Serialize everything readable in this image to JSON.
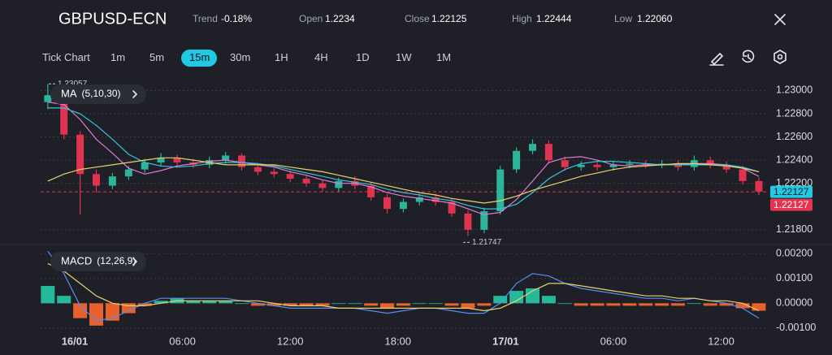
{
  "header": {
    "symbol": "GBPUSD-ECN",
    "stats": [
      {
        "label": "Trend",
        "value": "-0.18%"
      },
      {
        "label": "Open",
        "value": "1.2234"
      },
      {
        "label": "Close",
        "value": "1.22125"
      },
      {
        "label": "High",
        "value": "1.22444"
      },
      {
        "label": "Low",
        "value": "1.22060"
      }
    ]
  },
  "toolbar": {
    "items": [
      "Tick Chart",
      "1m",
      "5m",
      "15m",
      "30m",
      "1H",
      "4H",
      "1D",
      "1W",
      "1M"
    ],
    "selected": 3
  },
  "chart_data": [
    {
      "type": "candlestick",
      "indicator": "MA",
      "indicator_params": "(5,10,30)",
      "x": [
        -1.5,
        -0.6,
        0.3,
        1.2,
        2.1,
        3,
        3.9,
        4.8,
        5.7,
        6.6,
        7.5,
        8.4,
        9.3,
        10.2,
        11.1,
        12,
        12.9,
        13.8,
        14.7,
        15.6,
        16.5,
        17.4,
        18.3,
        19.2,
        20.1,
        21,
        21.9,
        22.8,
        23.7,
        24.6,
        25.5,
        26.4,
        27.3,
        28.2,
        29.1,
        30,
        30.9,
        31.8,
        32.7,
        33.6,
        34.5,
        35.4,
        36.3,
        37.2,
        38.1
      ],
      "xlim": [
        -1.9,
        38.6
      ],
      "open": [
        1.229,
        1.2296,
        1.2262,
        1.2228,
        1.2218,
        1.2226,
        1.2232,
        1.2238,
        1.2242,
        1.2238,
        1.2236,
        1.224,
        1.2244,
        1.2234,
        1.223,
        1.2228,
        1.2224,
        1.222,
        1.2216,
        1.2222,
        1.2218,
        1.2208,
        1.2198,
        1.2204,
        1.2208,
        1.2204,
        1.2194,
        1.218,
        1.2196,
        1.2232,
        1.2248,
        1.2254,
        1.224,
        1.2234,
        1.2236,
        1.2234,
        1.2236,
        1.2237,
        1.2236,
        1.2237,
        1.2234,
        1.224,
        1.2236,
        1.2232,
        1.2222
      ],
      "high": [
        1.23057,
        1.2299,
        1.2265,
        1.2232,
        1.2229,
        1.2235,
        1.2241,
        1.2246,
        1.2245,
        1.2241,
        1.2243,
        1.2247,
        1.2246,
        1.2237,
        1.2233,
        1.2231,
        1.2227,
        1.2223,
        1.2225,
        1.2226,
        1.2221,
        1.2211,
        1.2207,
        1.2211,
        1.2211,
        1.2207,
        1.2197,
        1.2199,
        1.2235,
        1.2251,
        1.2258,
        1.2257,
        1.2243,
        1.2239,
        1.2239,
        1.2239,
        1.224,
        1.224,
        1.224,
        1.224,
        1.2244,
        1.2243,
        1.2239,
        1.2235,
        1.2225
      ],
      "low": [
        1.2284,
        1.2258,
        1.2193,
        1.2212,
        1.2215,
        1.2223,
        1.2229,
        1.2235,
        1.2235,
        1.2233,
        1.2233,
        1.2237,
        1.2231,
        1.2227,
        1.2225,
        1.2221,
        1.2217,
        1.2213,
        1.2213,
        1.2215,
        1.2205,
        1.2194,
        1.2195,
        1.2201,
        1.2201,
        1.2191,
        1.21747,
        1.2177,
        1.2193,
        1.2229,
        1.2245,
        1.2237,
        1.2231,
        1.2231,
        1.2231,
        1.2231,
        1.2233,
        1.2233,
        1.2233,
        1.2231,
        1.2231,
        1.2233,
        1.2229,
        1.2219,
        1.221
      ],
      "close": [
        1.2296,
        1.2262,
        1.2228,
        1.2218,
        1.2226,
        1.2232,
        1.2238,
        1.2242,
        1.2238,
        1.2236,
        1.224,
        1.2244,
        1.2234,
        1.223,
        1.2228,
        1.2224,
        1.222,
        1.2216,
        1.2222,
        1.2218,
        1.2208,
        1.2198,
        1.2204,
        1.2208,
        1.2204,
        1.2194,
        1.218,
        1.2196,
        1.2232,
        1.2248,
        1.2254,
        1.224,
        1.2234,
        1.2236,
        1.2234,
        1.2236,
        1.2237,
        1.2236,
        1.2237,
        1.2234,
        1.224,
        1.2236,
        1.2232,
        1.2222,
        1.2213
      ],
      "up_color": "#2bb59a",
      "down_color": "#e0334f",
      "series": [
        {
          "color": "#e07bd9",
          "values": [
            1.229,
            1.2288,
            1.2275,
            1.2258,
            1.2246,
            1.2233,
            1.2228,
            1.2231,
            1.2235,
            1.2237,
            1.2239,
            1.224,
            1.2238,
            1.2236,
            1.2234,
            1.223,
            1.2227,
            1.2223,
            1.222,
            1.222,
            1.2217,
            1.2212,
            1.2209,
            1.2207,
            1.2205,
            1.2203,
            1.2198,
            1.2193,
            1.2195,
            1.2206,
            1.2222,
            1.2238,
            1.2242,
            1.2243,
            1.224,
            1.2236,
            1.2235,
            1.2236,
            1.2236,
            1.2236,
            1.2237,
            1.2237,
            1.2236,
            1.2233,
            1.2226
          ]
        },
        {
          "color": "#38c3d6",
          "values": [
            1.2285,
            1.2285,
            1.228,
            1.227,
            1.2258,
            1.2245,
            1.2238,
            1.2235,
            1.2234,
            1.2235,
            1.2237,
            1.2238,
            1.2238,
            1.2237,
            1.2235,
            1.2232,
            1.2229,
            1.2226,
            1.2223,
            1.2221,
            1.2219,
            1.2215,
            1.2212,
            1.221,
            1.2207,
            1.2205,
            1.2201,
            1.2198,
            1.2198,
            1.2202,
            1.2212,
            1.2224,
            1.2232,
            1.2237,
            1.2239,
            1.2239,
            1.2238,
            1.2237,
            1.2236,
            1.2236,
            1.2236,
            1.2236,
            1.2236,
            1.2234,
            1.223
          ]
        },
        {
          "color": "#e8d36a",
          "values": [
            1.2222,
            1.2228,
            1.2232,
            1.2234,
            1.2236,
            1.2238,
            1.224,
            1.2242,
            1.2242,
            1.224,
            1.2238,
            1.2236,
            1.2236,
            1.2236,
            1.2236,
            1.2234,
            1.2232,
            1.223,
            1.2227,
            1.2224,
            1.2221,
            1.2218,
            1.2215,
            1.2212,
            1.221,
            1.2207,
            1.2205,
            1.2203,
            1.2205,
            1.2209,
            1.2214,
            1.2218,
            1.2222,
            1.2226,
            1.2229,
            1.2232,
            1.2234,
            1.2235,
            1.2236,
            1.2237,
            1.2237,
            1.2236,
            1.2235,
            1.2233,
            1.223
          ]
        }
      ],
      "ylim": [
        1.2168,
        1.2308
      ],
      "yticks": [
        {
          "value": 1.23,
          "label": "1.23000"
        },
        {
          "value": 1.228,
          "label": "1.22800"
        },
        {
          "value": 1.226,
          "label": "1.22600"
        },
        {
          "value": 1.224,
          "label": "1.22400"
        },
        {
          "value": 1.222,
          "label": "1.22200"
        },
        {
          "value": 1.218,
          "label": "1.21800"
        }
      ],
      "grid": true,
      "high_label": 1.23057,
      "low_label": 1.21747,
      "price_tags": [
        {
          "value": 1.22127,
          "color": "#22c9e3"
        },
        {
          "value": 1.22127,
          "color": "#e53350"
        }
      ]
    },
    {
      "type": "macd",
      "indicator": "MACD",
      "indicator_params": "(12,26,9)",
      "histogram": [
        0.0007,
        0.0003,
        -0.0006,
        -0.0009,
        -0.0007,
        -0.0004,
        -0.0001,
        0.0001,
        0.0002,
        0.0001,
        0.0001,
        0.0001,
        0,
        -0.0001,
        -0.0001,
        -0.0001,
        -0.0001,
        -0.0001,
        0,
        0,
        -0.0001,
        -0.0002,
        -0.0001,
        0,
        0,
        -0.0001,
        -0.0002,
        -0.0001,
        0.0003,
        0.0005,
        0.0006,
        0.0003,
        0,
        -0.0001,
        -0.0001,
        -0.0001,
        -0.0001,
        -0.0001,
        -0.0001,
        -0.0001,
        0,
        -0.0001,
        -0.0001,
        -0.0002,
        -0.0003
      ],
      "pos_color": "#26b89a",
      "neg_color": "#e8612c",
      "series": [
        {
          "color": "#5b8def",
          "values": [
            0.0021,
            0.0012,
            -0.0001,
            -0.0007,
            -0.0006,
            -0.0003,
            0,
            0.0002,
            0.0002,
            0.0002,
            0.0002,
            0.0002,
            0.0001,
            0,
            -0.0001,
            -0.0002,
            -0.0002,
            -0.0002,
            -0.0002,
            -0.0002,
            -0.0003,
            -0.0004,
            -0.0003,
            -0.0002,
            -0.0002,
            -0.0003,
            -0.0004,
            -0.0004,
            0,
            0.0008,
            0.0012,
            0.0011,
            0.0008,
            0.0006,
            0.0005,
            0.0004,
            0.0003,
            0.0002,
            0.0002,
            0.0001,
            0.0002,
            0.0001,
            0,
            -0.0002,
            -0.0006
          ]
        },
        {
          "color": "#e8d36a",
          "values": [
            0.0016,
            0.0013,
            0.0008,
            0.0003,
            0,
            -0.0001,
            -0.0001,
            0,
            0.0001,
            0.0001,
            0.0001,
            0.0001,
            0.0001,
            0.0001,
            0,
            -0.0001,
            -0.0001,
            -0.0001,
            -0.0002,
            -0.0002,
            -0.0002,
            -0.0002,
            -0.0002,
            -0.0002,
            -0.0002,
            -0.0002,
            -0.0002,
            -0.0003,
            -0.0002,
            0.0001,
            0.0005,
            0.0008,
            0.0008,
            0.0007,
            0.0006,
            0.0005,
            0.0004,
            0.0003,
            0.0003,
            0.0002,
            0.0002,
            0.0001,
            0.0001,
            0,
            -0.0003
          ]
        }
      ],
      "ylim": [
        -0.0012,
        0.0024
      ],
      "yticks": [
        {
          "value": 0.002,
          "label": "0.00200"
        },
        {
          "value": 0.001,
          "label": "0.00100"
        },
        {
          "value": 0,
          "label": "0.00000"
        },
        {
          "value": -0.001,
          "label": "-0.00100"
        }
      ],
      "xticks": [
        {
          "value": 0,
          "label": "16/01"
        },
        {
          "value": 6,
          "label": "06:00"
        },
        {
          "value": 12,
          "label": "12:00"
        },
        {
          "value": 18,
          "label": "18:00"
        },
        {
          "value": 24,
          "label": "17/01"
        },
        {
          "value": 30,
          "label": "06:00"
        },
        {
          "value": 36,
          "label": "12:00"
        }
      ]
    }
  ]
}
